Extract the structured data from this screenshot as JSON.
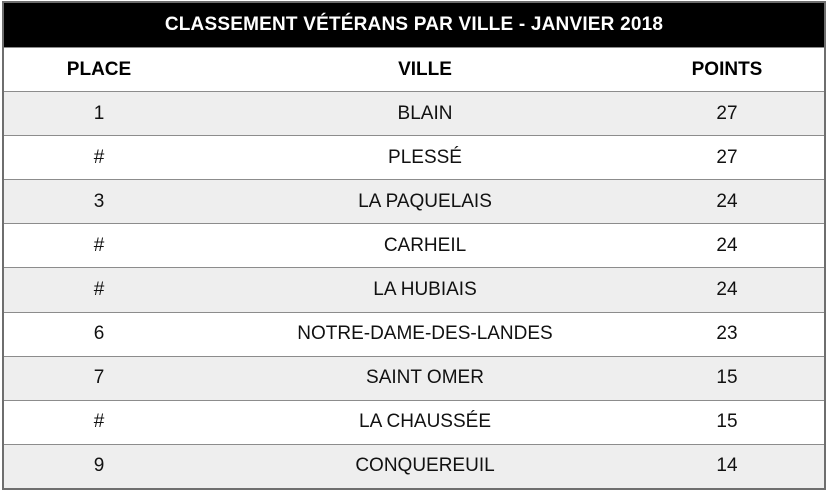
{
  "chart_data": {
    "type": "table",
    "title": "CLASSEMENT VÉTÉRANS PAR VILLE - JANVIER 2018",
    "columns": [
      "PLACE",
      "VILLE",
      "POINTS"
    ],
    "rows": [
      [
        "1",
        "BLAIN",
        "27"
      ],
      [
        "#",
        "PLESSÉ",
        "27"
      ],
      [
        "3",
        "LA PAQUELAIS",
        "24"
      ],
      [
        "#",
        "CARHEIL",
        "24"
      ],
      [
        "#",
        "LA HUBIAIS",
        "24"
      ],
      [
        "6",
        "NOTRE-DAME-DES-LANDES",
        "23"
      ],
      [
        "7",
        "SAINT OMER",
        "15"
      ],
      [
        "#",
        "LA CHAUSSÉE",
        "15"
      ],
      [
        "9",
        "CONQUEREUIL",
        "14"
      ]
    ],
    "layout": {
      "striped_rows": true,
      "stripe_pattern": "odd-rows-gray",
      "title_position": "top-banner",
      "column_alignment": [
        "center",
        "center",
        "center"
      ]
    }
  },
  "colors": {
    "title_bg": "#000000",
    "title_text": "#ffffff",
    "header_bg": "#ffffff",
    "header_text": "#000000",
    "row_stripe_bg": "#eeeeee",
    "row_plain_bg": "#ffffff",
    "body_text": "#111111",
    "border": "#8c8c8c",
    "outer_border": "#6e6e6e"
  }
}
